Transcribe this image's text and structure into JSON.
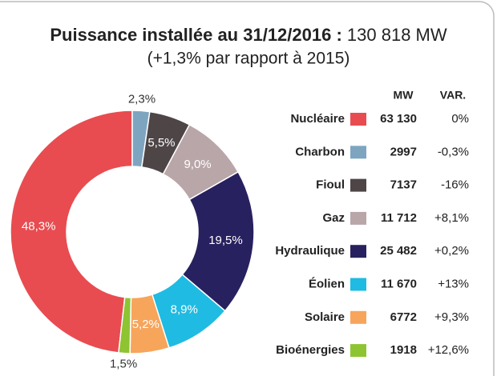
{
  "chart_data": {
    "type": "pie",
    "title": "Puissance installée au 31/12/2016 :",
    "total": "130 818 MW",
    "subtitle": "(+1,3% par rapport à 2015)",
    "categories": [
      "Nucléaire",
      "Charbon",
      "Fioul",
      "Gaz",
      "Hydraulique",
      "Éolien",
      "Solaire",
      "Bioénergies"
    ],
    "values": [
      48.3,
      2.3,
      5.5,
      9.0,
      19.5,
      8.9,
      5.2,
      1.5
    ],
    "value_labels": [
      "48,3%",
      "2,3%",
      "5,5%",
      "9,0%",
      "19,5%",
      "8,9%",
      "5,2%",
      "1,5%"
    ],
    "colors": [
      "#e84c50",
      "#7ea5c0",
      "#4e4547",
      "#b9a6a9",
      "#28215f",
      "#1fbbe2",
      "#f6a55b",
      "#8ec431"
    ],
    "table": {
      "columns": [
        "MW",
        "VAR."
      ],
      "mw": [
        "63 130",
        "2997",
        "7137",
        "11 712",
        "25 482",
        "11 670",
        "6772",
        "1918"
      ],
      "var": [
        "0%",
        "-0,3%",
        "-16%",
        "+8,1%",
        "+0,2%",
        "+13%",
        "+9,3%",
        "+12,6%"
      ]
    }
  }
}
